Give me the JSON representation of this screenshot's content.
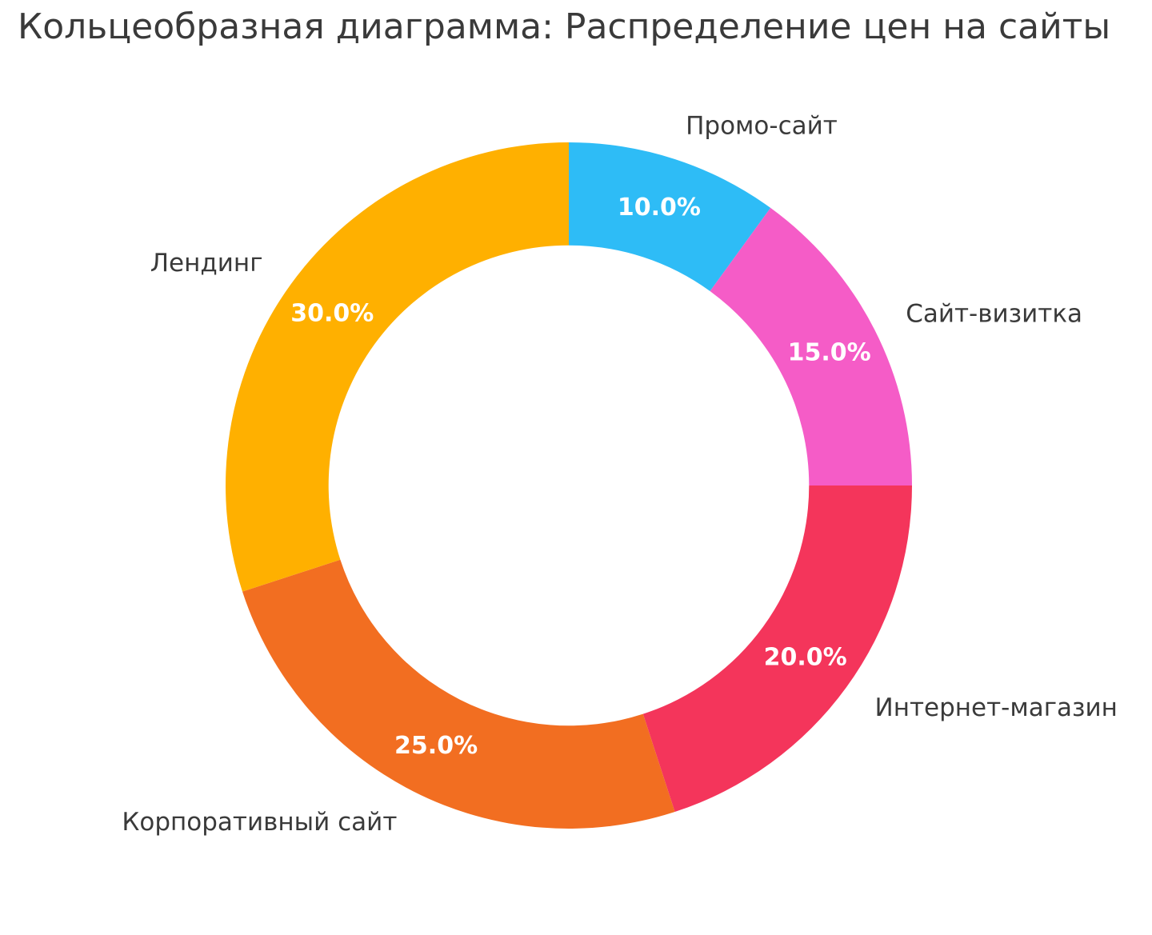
{
  "chart_data": {
    "type": "pie",
    "subtype": "donut",
    "title": "Кольцеобразная диаграмма: Распределение цен на сайты",
    "categories": [
      "Промо-сайт",
      "Сайт-визитка",
      "Интернет-магазин",
      "Корпоративный сайт",
      "Лендинг"
    ],
    "values": [
      10.0,
      15.0,
      20.0,
      25.0,
      30.0
    ],
    "percent_labels": [
      "10.0%",
      "15.0%",
      "20.0%",
      "25.0%",
      "30.0%"
    ],
    "colors": [
      "#2EBCF6",
      "#F55CC7",
      "#F4355B",
      "#F26E21",
      "#FFB000"
    ],
    "start_angle_deg": 0,
    "direction": "clockwise",
    "start_position": "top",
    "hole_ratio": 0.7,
    "label_distance": 1.102,
    "pct_distance": 0.852,
    "title_color": "#3a3a3a",
    "label_color": "#3a3a3a",
    "pct_text_color": "#ffffff",
    "background_color": "#ffffff",
    "legend": "none",
    "grid": "off"
  }
}
